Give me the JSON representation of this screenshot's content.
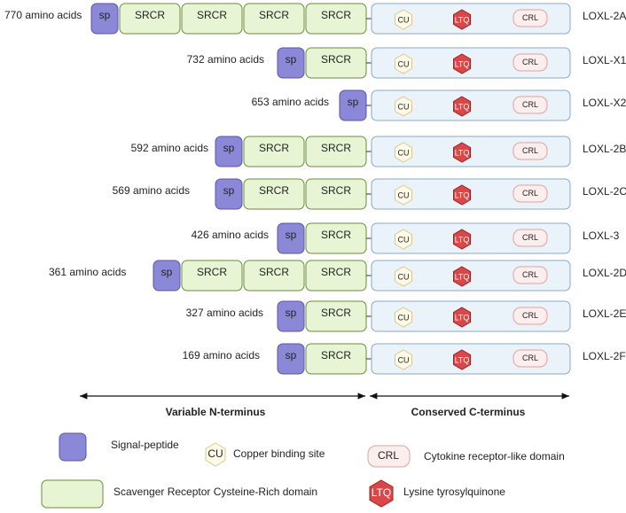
{
  "rows": [
    {
      "length": "770 amino acids",
      "name": "LOXL-2A",
      "n_domains": [
        "sp",
        "SRCR",
        "SRCR",
        "SRCR",
        "SRCR"
      ],
      "c_domains": [
        "CU",
        "LTQ",
        "CRL"
      ]
    },
    {
      "length": "732 amino acids",
      "name": "LOXL-X1",
      "n_domains": [
        "sp",
        "SRCR"
      ],
      "c_domains": [
        "CU",
        "LTQ",
        "CRL"
      ]
    },
    {
      "length": "653 amino acids",
      "name": "LOXL-X2",
      "n_domains": [
        "sp"
      ],
      "c_domains": [
        "CU",
        "LTQ",
        "CRL"
      ]
    },
    {
      "length": "592 amino acids",
      "name": "LOXL-2B",
      "n_domains": [
        "sp",
        "SRCR",
        "SRCR"
      ],
      "c_domains": [
        "CU",
        "LTQ",
        "CRL"
      ]
    },
    {
      "length": "569 amino acids",
      "name": "LOXL-2C",
      "n_domains": [
        "sp",
        "SRCR",
        "SRCR"
      ],
      "c_domains": [
        "CU",
        "LTQ",
        "CRL"
      ]
    },
    {
      "length": "426 amino acids",
      "name": "LOXL-3",
      "n_domains": [
        "sp",
        "SRCR"
      ],
      "c_domains": [
        "CU",
        "LTQ",
        "CRL"
      ]
    },
    {
      "length": "361 amino acids",
      "name": "LOXL-2D",
      "n_domains": [
        "sp",
        "SRCR",
        "SRCR",
        "SRCR"
      ],
      "c_domains": [
        "CU",
        "LTQ",
        "CRL"
      ]
    },
    {
      "length": "327 amino acids",
      "name": "LOXL-2E",
      "n_domains": [
        "sp",
        "SRCR"
      ],
      "c_domains": [
        "CU",
        "LTQ",
        "CRL"
      ]
    },
    {
      "length": "169 amino acids",
      "name": "LOXL-2F",
      "n_domains": [
        "sp",
        "SRCR"
      ],
      "c_domains": [
        "CU",
        "LTQ",
        "CRL"
      ]
    }
  ],
  "regions": {
    "n_terminus": "Variable N-terminus",
    "c_terminus": "Conserved C-terminus"
  },
  "legend": {
    "signal_peptide": "Signal-peptide",
    "copper": {
      "symbol": "CU",
      "label": "Copper binding site"
    },
    "crl": {
      "symbol": "CRL",
      "label": "Cytokine receptor-like domain"
    },
    "srcr": "Scavenger Receptor Cysteine-Rich domain",
    "ltq": {
      "symbol": "LTQ",
      "label": "Lysine tyrosylquinone"
    }
  }
}
